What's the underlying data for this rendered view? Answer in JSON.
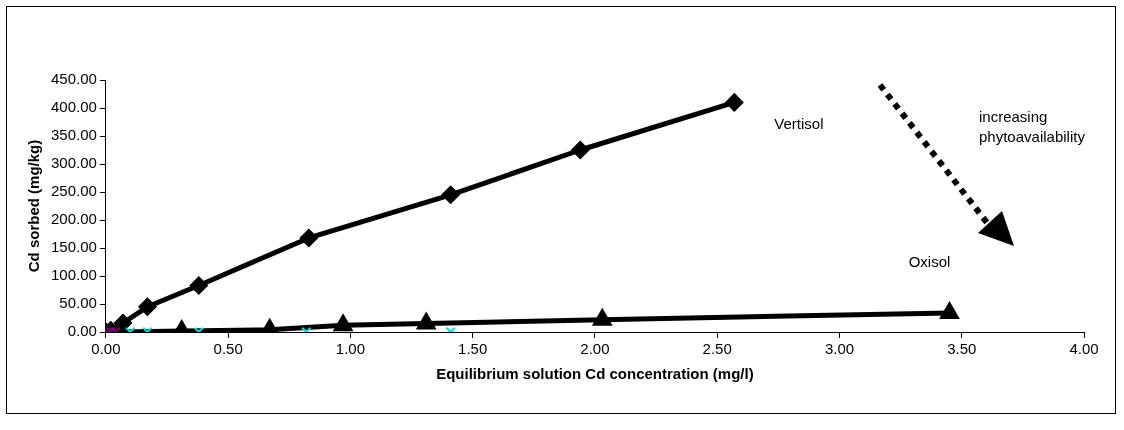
{
  "chart_data": {
    "type": "line",
    "xlabel": "Equilibrium solution Cd concentration (mg/l)",
    "ylabel": "Cd sorbed (mg/kg)",
    "xlim": [
      0,
      4
    ],
    "xticks": [
      {
        "value": 0,
        "label": "0.00"
      },
      {
        "value": 0.5,
        "label": "0.50"
      },
      {
        "value": 1,
        "label": "1.00"
      },
      {
        "value": 1.5,
        "label": "1.50"
      },
      {
        "value": 2,
        "label": "2.00"
      },
      {
        "value": 2.5,
        "label": "2.50"
      },
      {
        "value": 3,
        "label": "3.00"
      },
      {
        "value": 3.5,
        "label": "3.50"
      },
      {
        "value": 4,
        "label": "4.00"
      }
    ],
    "ylim": [
      0,
      450
    ],
    "yticks": [
      {
        "value": 0,
        "label": "0.00"
      },
      {
        "value": 50,
        "label": "50.00"
      },
      {
        "value": 100,
        "label": "100.00"
      },
      {
        "value": 150,
        "label": "150.00"
      },
      {
        "value": 200,
        "label": "200.00"
      },
      {
        "value": 250,
        "label": "250.00"
      },
      {
        "value": 300,
        "label": "300.00"
      },
      {
        "value": 350,
        "label": "350.00"
      },
      {
        "value": 400,
        "label": "400.00"
      },
      {
        "value": 450,
        "label": "450.00"
      }
    ],
    "grid": false,
    "legend": false,
    "series": [
      {
        "name": "Vertisol",
        "marker": "diamond",
        "color": "#000000",
        "x": [
          0,
          0.02,
          0.07,
          0.17,
          0.38,
          0.83,
          1.41,
          1.94,
          2.57
        ],
        "values": [
          0,
          3,
          16,
          45,
          83,
          168,
          245,
          325,
          410
        ]
      },
      {
        "name": "Oxisol",
        "marker": "triangle",
        "color": "#000000",
        "x": [
          0.06,
          0.31,
          0.67,
          0.97,
          1.31,
          2.03,
          3.45
        ],
        "values": [
          0,
          2,
          4,
          12,
          15,
          22,
          34
        ]
      },
      {
        "type": "scatter",
        "marker": "cross",
        "color": "#00e0e0",
        "x": [
          0.1,
          0.17,
          0.38,
          0.82,
          1.41
        ],
        "values": [
          0,
          0,
          0,
          0,
          0
        ]
      },
      {
        "type": "scatter",
        "marker": "cross",
        "color": "#800080",
        "x": [
          0,
          0.02,
          0.04
        ],
        "values": [
          0,
          0,
          0
        ]
      }
    ],
    "annotations": [
      "increasing phytoavailability"
    ]
  }
}
